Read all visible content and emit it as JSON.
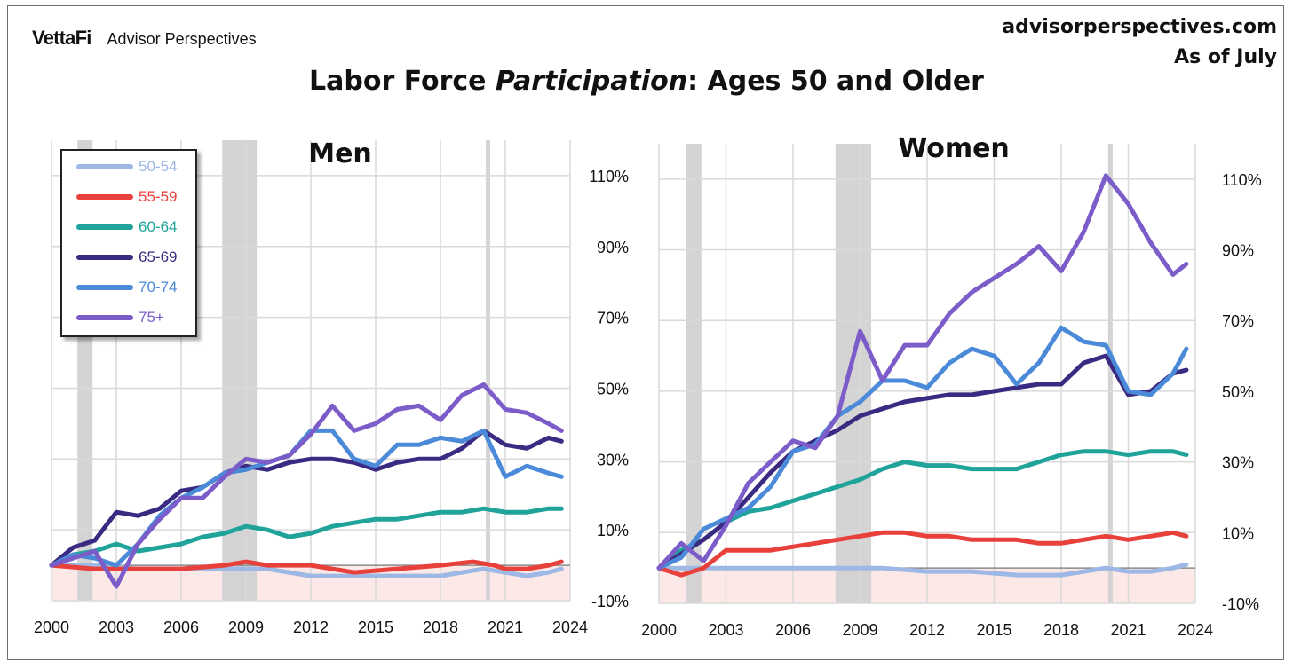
{
  "header": {
    "brand": "VettaFi",
    "brand_sub": "Advisor Perspectives",
    "site": "advisorperspectives.com",
    "as_of": "As of July",
    "title_pre": "Labor Force ",
    "title_em": "Participation",
    "title_post": ": Ages 50 and Older"
  },
  "colors": {
    "50-54": "#9db8e4",
    "55-59": "#e8413b",
    "60-64": "#1fa39b",
    "65-69": "#3b2a82",
    "70-74": "#4a8ad8",
    "75+": "#7b5cc8",
    "recession": "#cfcfcf",
    "negative_band": "#fde8e8"
  },
  "chart_data": [
    {
      "type": "line",
      "title": "Men",
      "x_ticks": [
        "2000",
        "2003",
        "2006",
        "2009",
        "2012",
        "2015",
        "2018",
        "2021",
        "2024"
      ],
      "y_ticks": [
        "110%",
        "90%",
        "70%",
        "50%",
        "30%",
        "10%",
        "-10%"
      ],
      "xlim": [
        2000,
        2024
      ],
      "ylim": [
        -10,
        120
      ],
      "grid": true,
      "legend": "top-left",
      "recessions": [
        [
          2001.2,
          2001.9
        ],
        [
          2007.9,
          2009.5
        ],
        [
          2020.1,
          2020.3
        ]
      ],
      "series": [
        {
          "name": "50-54",
          "x": [
            2000,
            2002,
            2004,
            2006,
            2008,
            2010,
            2012,
            2014,
            2016,
            2018,
            2020,
            2021,
            2022,
            2023,
            2023.6
          ],
          "y": [
            0,
            0,
            -1,
            -1,
            -1,
            -1,
            -3,
            -3,
            -3,
            -3,
            -1,
            -2,
            -3,
            -2,
            -1
          ]
        },
        {
          "name": "55-59",
          "x": [
            2000,
            2002,
            2004,
            2006,
            2008,
            2009,
            2010,
            2012,
            2014,
            2016,
            2018,
            2019.5,
            2020.5,
            2021,
            2022,
            2023,
            2023.6
          ],
          "y": [
            0,
            -1,
            -1,
            -1,
            0,
            1,
            0,
            0,
            -2,
            -1,
            0,
            1,
            0,
            -1,
            -1,
            0,
            1
          ]
        },
        {
          "name": "60-64",
          "x": [
            2000,
            2001,
            2002,
            2003,
            2004,
            2006,
            2007,
            2008,
            2009,
            2010,
            2011,
            2012,
            2013,
            2014,
            2015,
            2016,
            2017,
            2018,
            2019,
            2020,
            2021,
            2022,
            2023,
            2023.6
          ],
          "y": [
            0,
            3,
            4,
            6,
            4,
            6,
            8,
            9,
            11,
            10,
            8,
            9,
            11,
            12,
            13,
            13,
            14,
            15,
            15,
            16,
            15,
            15,
            16,
            16
          ]
        },
        {
          "name": "65-69",
          "x": [
            2000,
            2001,
            2002,
            2003,
            2004,
            2005,
            2006,
            2007,
            2008,
            2009,
            2010,
            2011,
            2012,
            2013,
            2014,
            2015,
            2016,
            2017,
            2018,
            2019,
            2020,
            2021,
            2022,
            2023,
            2023.6
          ],
          "y": [
            0,
            5,
            7,
            15,
            14,
            16,
            21,
            22,
            26,
            28,
            27,
            29,
            30,
            30,
            29,
            27,
            29,
            30,
            30,
            33,
            38,
            34,
            33,
            36,
            35
          ]
        },
        {
          "name": "70-74",
          "x": [
            2000,
            2001,
            2002,
            2003,
            2004,
            2005,
            2006,
            2007,
            2008,
            2009,
            2010,
            2011,
            2012,
            2013,
            2014,
            2015,
            2016,
            2017,
            2018,
            2019,
            2020,
            2021,
            2022,
            2023,
            2023.6
          ],
          "y": [
            0,
            3,
            2,
            0,
            6,
            14,
            19,
            22,
            26,
            27,
            29,
            31,
            38,
            38,
            30,
            28,
            34,
            34,
            36,
            35,
            38,
            25,
            28,
            26,
            25
          ]
        },
        {
          "name": "75+",
          "x": [
            2000,
            2001,
            2002,
            2003,
            2004,
            2005,
            2006,
            2007,
            2008,
            2009,
            2010,
            2011,
            2012,
            2013,
            2014,
            2015,
            2016,
            2017,
            2018,
            2019,
            2020,
            2021,
            2022,
            2023,
            2023.6
          ],
          "y": [
            0,
            2,
            4,
            -6,
            6,
            13,
            19,
            19,
            25,
            30,
            29,
            31,
            37,
            45,
            38,
            40,
            44,
            45,
            41,
            48,
            51,
            44,
            43,
            40,
            38
          ]
        }
      ]
    },
    {
      "type": "line",
      "title": "Women",
      "x_ticks": [
        "2000",
        "2003",
        "2006",
        "2009",
        "2012",
        "2015",
        "2018",
        "2021",
        "2024"
      ],
      "y_ticks": [
        "110%",
        "90%",
        "70%",
        "50%",
        "30%",
        "10%",
        "-10%"
      ],
      "xlim": [
        2000,
        2024
      ],
      "ylim": [
        -10,
        120
      ],
      "grid": true,
      "recessions": [
        [
          2001.2,
          2001.9
        ],
        [
          2007.9,
          2009.5
        ],
        [
          2020.1,
          2020.3
        ]
      ],
      "series": [
        {
          "name": "50-54",
          "x": [
            2000,
            2002,
            2004,
            2006,
            2008,
            2010,
            2012,
            2014,
            2016,
            2018,
            2020,
            2021,
            2022,
            2023,
            2023.6
          ],
          "y": [
            0,
            0,
            0,
            0,
            0,
            0,
            -1,
            -1,
            -2,
            -2,
            0,
            -1,
            -1,
            0,
            1
          ]
        },
        {
          "name": "55-59",
          "x": [
            2000,
            2001,
            2002,
            2003,
            2004,
            2005,
            2006,
            2007,
            2008,
            2009,
            2010,
            2011,
            2012,
            2013,
            2014,
            2015,
            2016,
            2017,
            2018,
            2019,
            2020,
            2021,
            2022,
            2023,
            2023.6
          ],
          "y": [
            0,
            -2,
            0,
            5,
            5,
            5,
            6,
            7,
            8,
            9,
            10,
            10,
            9,
            9,
            8,
            8,
            8,
            7,
            7,
            8,
            9,
            8,
            9,
            10,
            9
          ]
        },
        {
          "name": "60-64",
          "x": [
            2000,
            2001,
            2002,
            2003,
            2004,
            2005,
            2006,
            2007,
            2008,
            2009,
            2010,
            2011,
            2012,
            2013,
            2014,
            2015,
            2016,
            2017,
            2018,
            2019,
            2020,
            2021,
            2022,
            2023,
            2023.6
          ],
          "y": [
            0,
            5,
            8,
            13,
            16,
            17,
            19,
            21,
            23,
            25,
            28,
            30,
            29,
            29,
            28,
            28,
            28,
            30,
            32,
            33,
            33,
            32,
            33,
            33,
            32
          ]
        },
        {
          "name": "65-69",
          "x": [
            2000,
            2001,
            2002,
            2003,
            2004,
            2005,
            2006,
            2007,
            2008,
            2009,
            2010,
            2011,
            2012,
            2013,
            2014,
            2015,
            2016,
            2017,
            2018,
            2019,
            2020,
            2021,
            2022,
            2023,
            2023.6
          ],
          "y": [
            0,
            4,
            8,
            13,
            20,
            27,
            33,
            36,
            39,
            43,
            45,
            47,
            48,
            49,
            49,
            50,
            51,
            52,
            52,
            58,
            60,
            49,
            50,
            55,
            56
          ]
        },
        {
          "name": "70-74",
          "x": [
            2000,
            2001,
            2002,
            2003,
            2004,
            2005,
            2006,
            2007,
            2008,
            2009,
            2010,
            2011,
            2012,
            2013,
            2014,
            2015,
            2016,
            2017,
            2018,
            2019,
            2020,
            2021,
            2022,
            2023,
            2023.6
          ],
          "y": [
            0,
            3,
            11,
            14,
            17,
            23,
            33,
            35,
            43,
            47,
            53,
            53,
            51,
            58,
            62,
            60,
            52,
            58,
            68,
            64,
            63,
            50,
            49,
            55,
            62
          ]
        },
        {
          "name": "75+",
          "x": [
            2000,
            2001,
            2002,
            2003,
            2004,
            2005,
            2006,
            2007,
            2008,
            2009,
            2010,
            2011,
            2012,
            2013,
            2014,
            2015,
            2016,
            2017,
            2018,
            2019,
            2020,
            2021,
            2022,
            2023,
            2023.6
          ],
          "y": [
            0,
            7,
            2,
            12,
            24,
            30,
            36,
            34,
            43,
            67,
            53,
            63,
            63,
            72,
            78,
            82,
            86,
            91,
            84,
            95,
            111,
            103,
            92,
            83,
            86
          ]
        }
      ]
    }
  ]
}
